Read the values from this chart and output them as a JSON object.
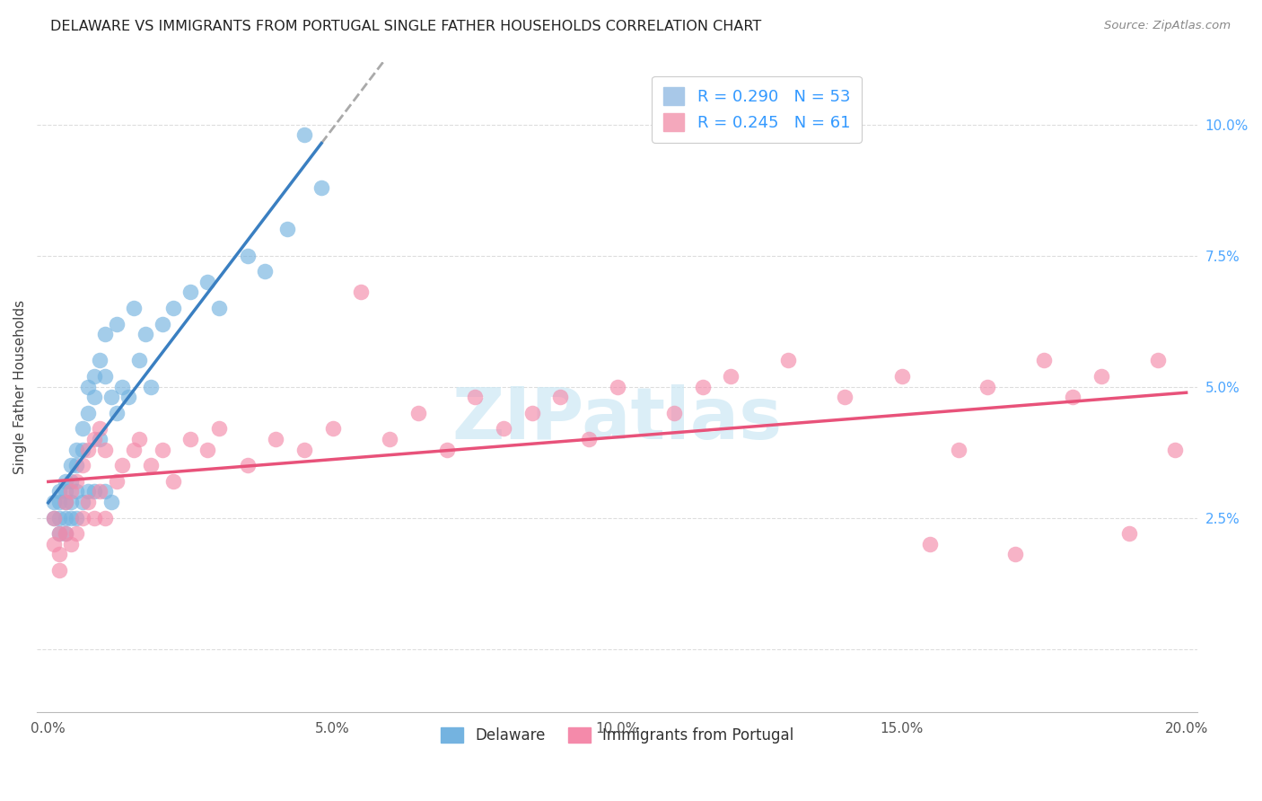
{
  "title": "DELAWARE VS IMMIGRANTS FROM PORTUGAL SINGLE FATHER HOUSEHOLDS CORRELATION CHART",
  "source": "Source: ZipAtlas.com",
  "ylabel": "Single Father Households",
  "xlim": [
    -0.002,
    0.202
  ],
  "ylim": [
    -0.012,
    0.112
  ],
  "xtick_positions": [
    0.0,
    0.05,
    0.1,
    0.15,
    0.2
  ],
  "xtick_labels": [
    "0.0%",
    "5.0%",
    "10.0%",
    "15.0%",
    "20.0%"
  ],
  "ytick_positions": [
    0.0,
    0.025,
    0.05,
    0.075,
    0.1
  ],
  "ytick_labels": [
    "",
    "2.5%",
    "5.0%",
    "7.5%",
    "10.0%"
  ],
  "legend_r_labels": [
    "R = 0.290   N = 53",
    "R = 0.245   N = 61"
  ],
  "legend_colors_r": [
    "#a8c8e8",
    "#f4a8bc"
  ],
  "bottom_legend_labels": [
    "Delaware",
    "Immigrants from Portugal"
  ],
  "delaware_color": "#74b3e0",
  "portugal_color": "#f48aaa",
  "delaware_line_color": "#3a7fc1",
  "portugal_line_color": "#e8527a",
  "delaware_line_dash_color": "#aaaaaa",
  "legend_text_color": "#3399ff",
  "ytick_color": "#4da6ff",
  "xtick_color": "#555555",
  "background_color": "#ffffff",
  "grid_color": "#dddddd",
  "watermark_text": "ZIPatlas",
  "watermark_color": "#cce8f4",
  "del_scatter_x": [
    0.001,
    0.001,
    0.002,
    0.002,
    0.002,
    0.002,
    0.003,
    0.003,
    0.003,
    0.003,
    0.003,
    0.004,
    0.004,
    0.004,
    0.004,
    0.005,
    0.005,
    0.005,
    0.005,
    0.006,
    0.006,
    0.006,
    0.007,
    0.007,
    0.007,
    0.008,
    0.008,
    0.008,
    0.009,
    0.009,
    0.01,
    0.01,
    0.01,
    0.011,
    0.011,
    0.012,
    0.012,
    0.013,
    0.014,
    0.015,
    0.016,
    0.017,
    0.018,
    0.02,
    0.022,
    0.025,
    0.028,
    0.03,
    0.035,
    0.038,
    0.042,
    0.045,
    0.048
  ],
  "del_scatter_y": [
    0.028,
    0.025,
    0.03,
    0.028,
    0.025,
    0.022,
    0.032,
    0.03,
    0.028,
    0.025,
    0.022,
    0.035,
    0.032,
    0.028,
    0.025,
    0.038,
    0.035,
    0.03,
    0.025,
    0.042,
    0.038,
    0.028,
    0.05,
    0.045,
    0.03,
    0.052,
    0.048,
    0.03,
    0.055,
    0.04,
    0.06,
    0.052,
    0.03,
    0.048,
    0.028,
    0.062,
    0.045,
    0.05,
    0.048,
    0.065,
    0.055,
    0.06,
    0.05,
    0.062,
    0.065,
    0.068,
    0.07,
    0.065,
    0.075,
    0.072,
    0.08,
    0.098,
    0.088
  ],
  "por_scatter_x": [
    0.001,
    0.001,
    0.002,
    0.002,
    0.002,
    0.003,
    0.003,
    0.004,
    0.004,
    0.005,
    0.005,
    0.006,
    0.006,
    0.007,
    0.007,
    0.008,
    0.008,
    0.009,
    0.009,
    0.01,
    0.01,
    0.012,
    0.013,
    0.015,
    0.016,
    0.018,
    0.02,
    0.022,
    0.025,
    0.028,
    0.03,
    0.035,
    0.04,
    0.045,
    0.05,
    0.055,
    0.06,
    0.065,
    0.07,
    0.075,
    0.08,
    0.085,
    0.09,
    0.095,
    0.1,
    0.11,
    0.115,
    0.12,
    0.13,
    0.14,
    0.15,
    0.155,
    0.16,
    0.165,
    0.17,
    0.175,
    0.18,
    0.185,
    0.19,
    0.195,
    0.198
  ],
  "por_scatter_y": [
    0.025,
    0.02,
    0.022,
    0.018,
    0.015,
    0.028,
    0.022,
    0.03,
    0.02,
    0.032,
    0.022,
    0.035,
    0.025,
    0.038,
    0.028,
    0.04,
    0.025,
    0.042,
    0.03,
    0.038,
    0.025,
    0.032,
    0.035,
    0.038,
    0.04,
    0.035,
    0.038,
    0.032,
    0.04,
    0.038,
    0.042,
    0.035,
    0.04,
    0.038,
    0.042,
    0.068,
    0.04,
    0.045,
    0.038,
    0.048,
    0.042,
    0.045,
    0.048,
    0.04,
    0.05,
    0.045,
    0.05,
    0.052,
    0.055,
    0.048,
    0.052,
    0.02,
    0.038,
    0.05,
    0.018,
    0.055,
    0.048,
    0.052,
    0.022,
    0.055,
    0.038
  ]
}
